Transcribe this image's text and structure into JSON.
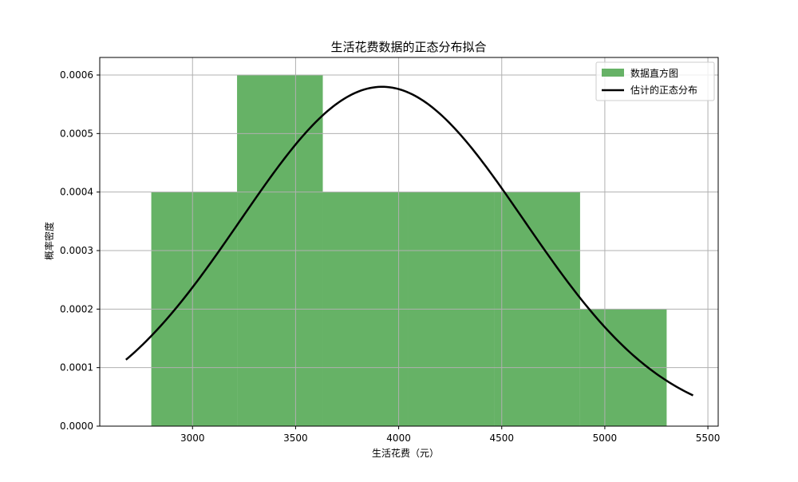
{
  "chart_data": {
    "type": "bar",
    "title": "生活花费数据的正态分布拟合",
    "xlabel": "生活花费（元）",
    "ylabel": "概率密度",
    "xlim": [
      2550,
      5550
    ],
    "ylim": [
      0,
      0.00063
    ],
    "x_ticks": [
      3000,
      3500,
      4000,
      4500,
      5000,
      5500
    ],
    "x_tick_labels": [
      "3000",
      "3500",
      "4000",
      "4500",
      "5000",
      "5500"
    ],
    "y_ticks": [
      0.0,
      0.0001,
      0.0002,
      0.0003,
      0.0004,
      0.0005,
      0.0006
    ],
    "y_tick_labels": [
      "0.0000",
      "0.0001",
      "0.0002",
      "0.0003",
      "0.0004",
      "0.0005",
      "0.0006"
    ],
    "grid": true,
    "legend_position": "top-right",
    "histogram": {
      "name": "数据直方图",
      "color": "#66b266",
      "bins": [
        {
          "x0": 2800,
          "x1": 3216,
          "density": 0.0004
        },
        {
          "x0": 3216,
          "x1": 3632,
          "density": 0.0006
        },
        {
          "x0": 3632,
          "x1": 4048,
          "density": 0.0004
        },
        {
          "x0": 4048,
          "x1": 4464,
          "density": 0.0004
        },
        {
          "x0": 4464,
          "x1": 4880,
          "density": 0.0004
        },
        {
          "x0": 4880,
          "x1": 5300,
          "density": 0.0002
        }
      ]
    },
    "fit": {
      "name": "估计的正态分布",
      "color": "#000000",
      "mean": 3920,
      "std": 688,
      "x_range": [
        2677,
        5428
      ]
    }
  }
}
